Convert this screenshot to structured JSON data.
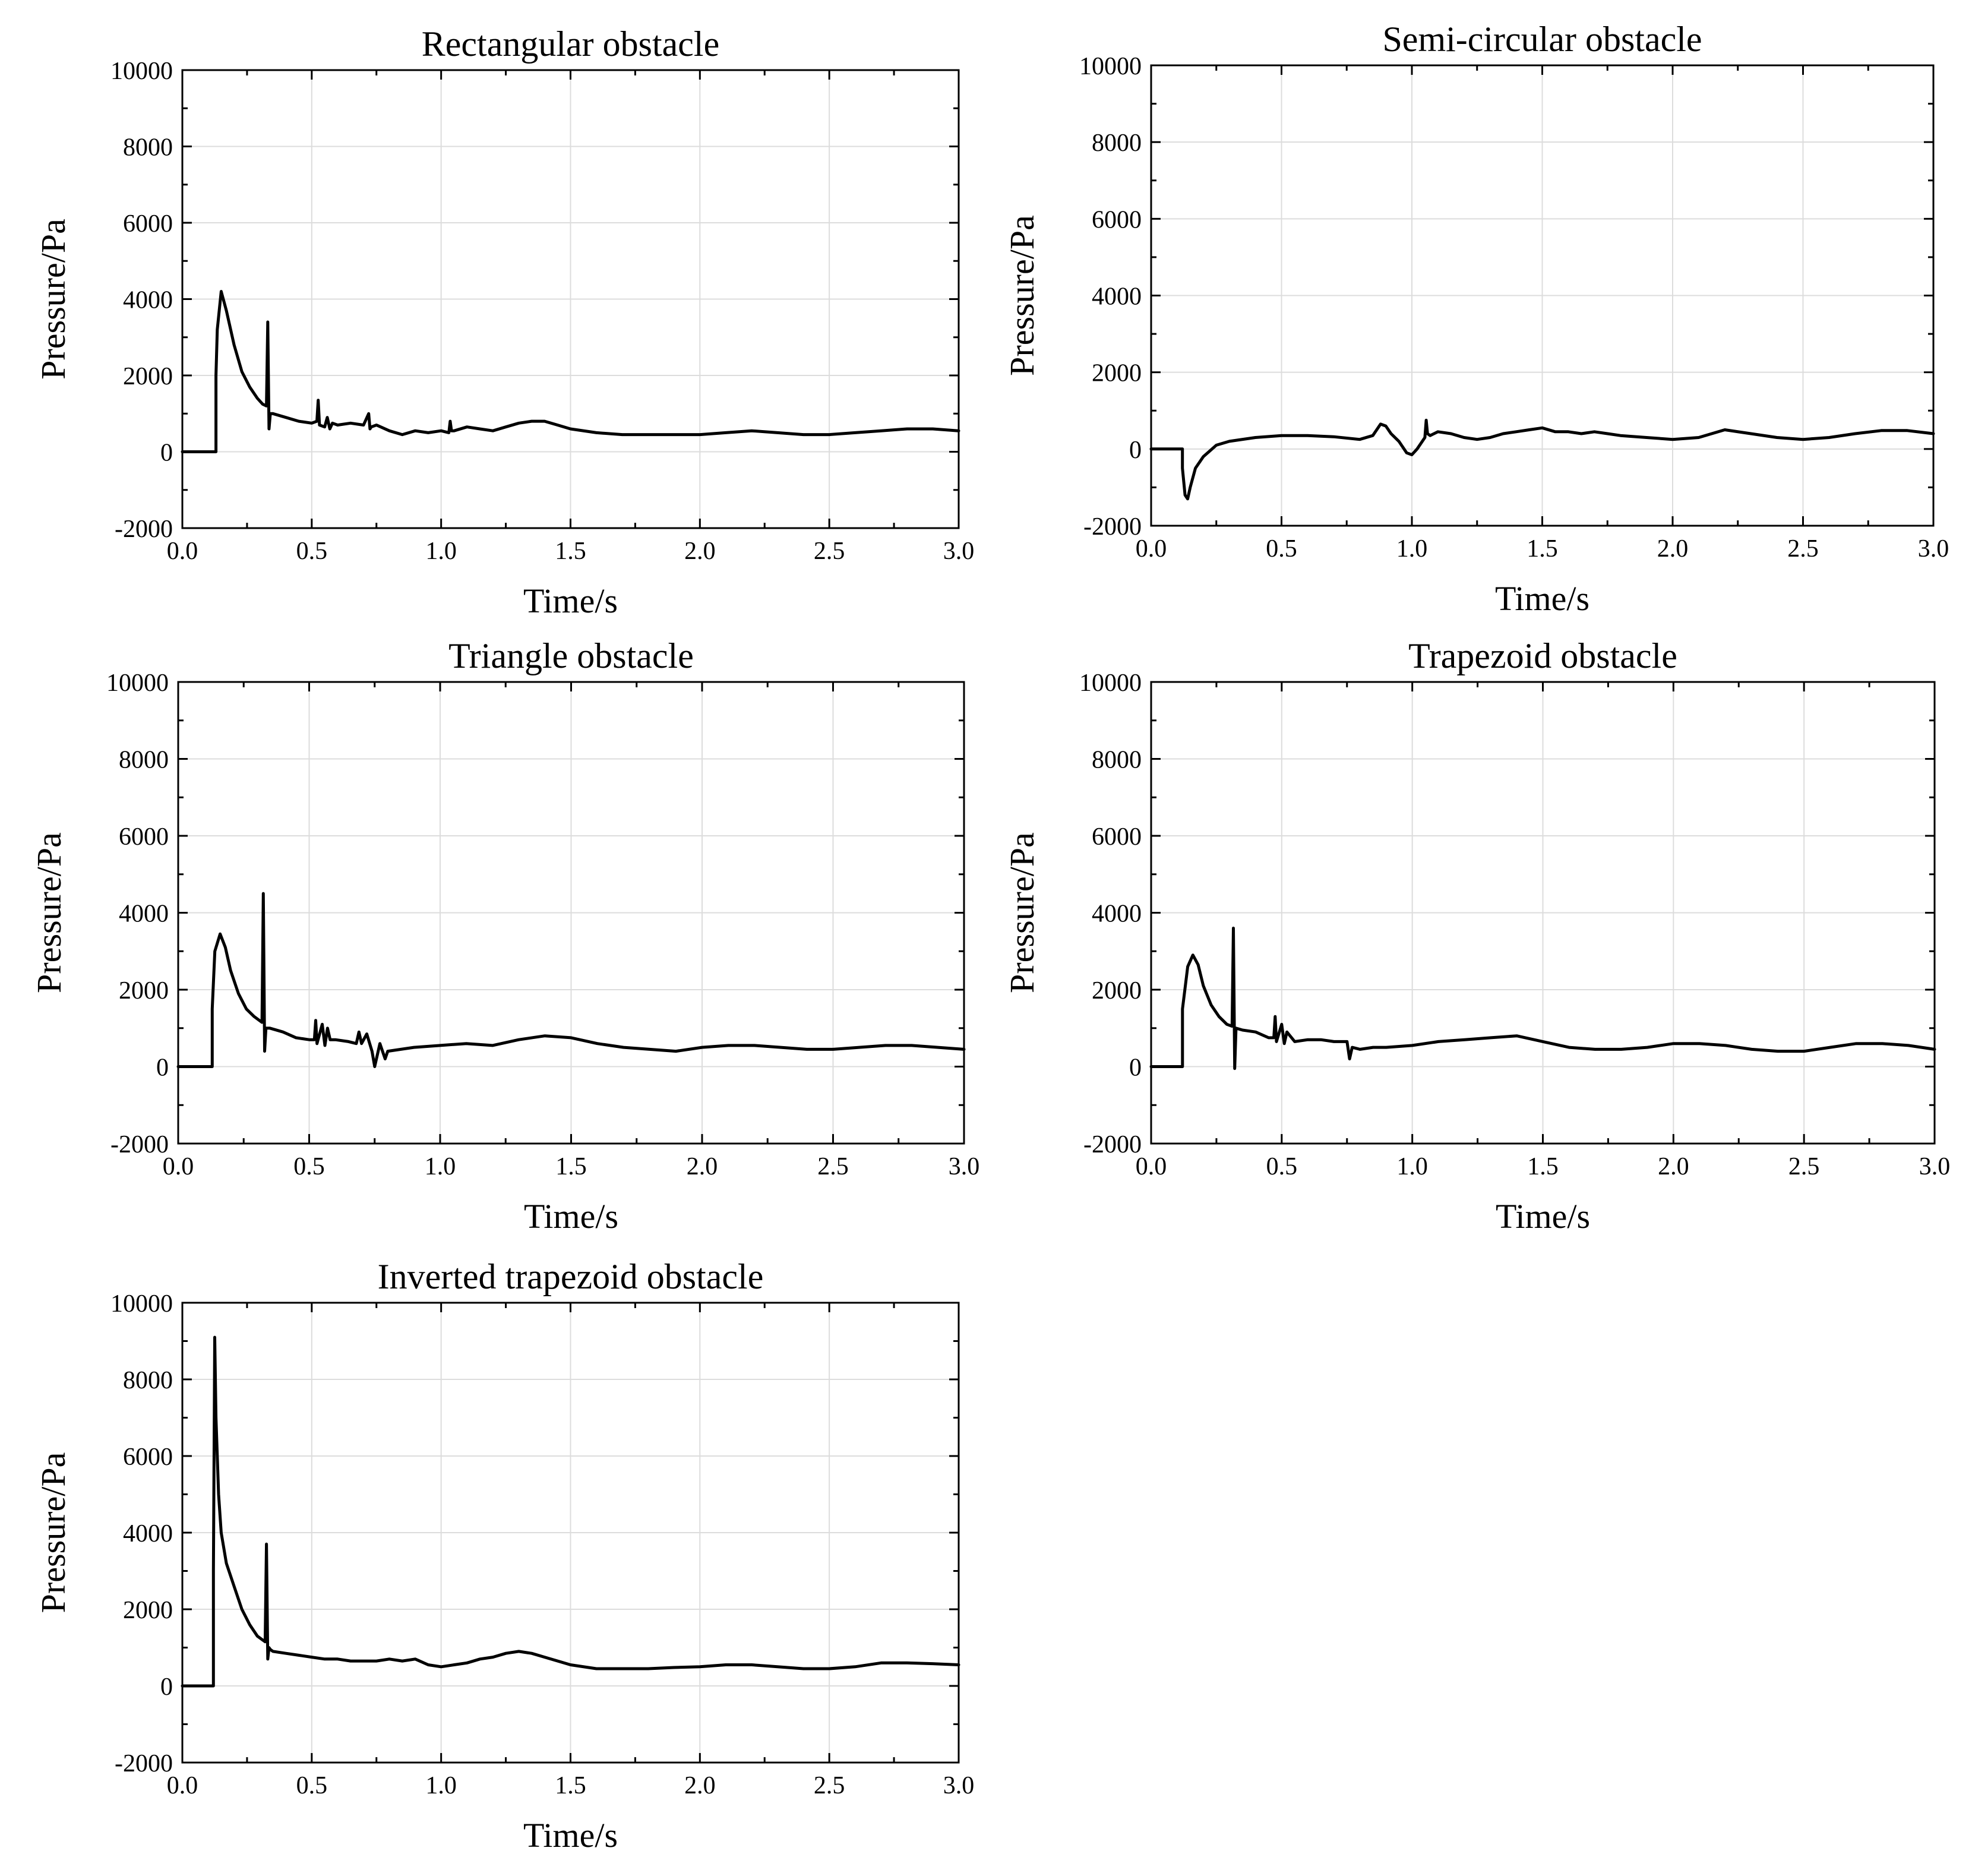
{
  "chart_data": [
    {
      "type": "line",
      "title": "Rectangular obstacle",
      "xlabel": "Time/s",
      "ylabel": "Pressure/Pa",
      "xlim": [
        0.0,
        3.0
      ],
      "ylim": [
        -2000,
        10000
      ],
      "xticks": [
        "0.0",
        "0.5",
        "1.0",
        "1.5",
        "2.0",
        "2.5",
        "3.0"
      ],
      "yticks": [
        "-2000",
        "0",
        "2000",
        "4000",
        "6000",
        "8000",
        "10000"
      ],
      "grid": true,
      "series": [
        {
          "name": "pressure",
          "x": [
            0,
            0.13,
            0.13,
            0.135,
            0.15,
            0.17,
            0.2,
            0.23,
            0.26,
            0.29,
            0.31,
            0.325,
            0.33,
            0.335,
            0.34,
            0.35,
            0.4,
            0.45,
            0.5,
            0.52,
            0.525,
            0.53,
            0.55,
            0.56,
            0.57,
            0.58,
            0.6,
            0.65,
            0.7,
            0.72,
            0.725,
            0.73,
            0.75,
            0.8,
            0.85,
            0.9,
            0.95,
            1.0,
            1.03,
            1.035,
            1.04,
            1.05,
            1.1,
            1.15,
            1.2,
            1.25,
            1.3,
            1.35,
            1.4,
            1.45,
            1.5,
            1.6,
            1.7,
            1.8,
            1.9,
            2.0,
            2.1,
            2.2,
            2.3,
            2.4,
            2.5,
            2.6,
            2.7,
            2.8,
            2.9,
            3.0
          ],
          "y": [
            0,
            0,
            2000,
            3200,
            4200,
            3700,
            2800,
            2100,
            1700,
            1400,
            1250,
            1200,
            3400,
            600,
            1000,
            1000,
            900,
            800,
            750,
            800,
            1350,
            700,
            650,
            900,
            600,
            750,
            700,
            750,
            700,
            1000,
            600,
            650,
            700,
            550,
            450,
            550,
            500,
            550,
            500,
            800,
            550,
            550,
            650,
            600,
            550,
            650,
            750,
            800,
            800,
            700,
            600,
            500,
            450,
            450,
            450,
            450,
            500,
            550,
            500,
            450,
            450,
            500,
            550,
            600,
            600,
            550
          ]
        }
      ]
    },
    {
      "type": "line",
      "title": "Semi-circular obstacle",
      "xlabel": "Time/s",
      "ylabel": "Pressure/Pa",
      "xlim": [
        0.0,
        3.0
      ],
      "ylim": [
        -2000,
        10000
      ],
      "xticks": [
        "0.0",
        "0.5",
        "1.0",
        "1.5",
        "2.0",
        "2.5",
        "3.0"
      ],
      "yticks": [
        "-2000",
        "0",
        "2000",
        "4000",
        "6000",
        "8000",
        "10000"
      ],
      "grid": true,
      "series": [
        {
          "name": "pressure",
          "x": [
            0,
            0.12,
            0.12,
            0.13,
            0.14,
            0.15,
            0.17,
            0.2,
            0.25,
            0.3,
            0.4,
            0.5,
            0.6,
            0.7,
            0.8,
            0.85,
            0.88,
            0.9,
            0.92,
            0.95,
            0.98,
            1.0,
            1.02,
            1.05,
            1.055,
            1.06,
            1.07,
            1.1,
            1.15,
            1.2,
            1.25,
            1.3,
            1.35,
            1.4,
            1.45,
            1.5,
            1.55,
            1.6,
            1.65,
            1.7,
            1.75,
            1.8,
            1.9,
            2.0,
            2.1,
            2.2,
            2.3,
            2.4,
            2.5,
            2.6,
            2.7,
            2.8,
            2.9,
            3.0
          ],
          "y": [
            0,
            0,
            -500,
            -1200,
            -1300,
            -1000,
            -500,
            -200,
            100,
            200,
            300,
            350,
            350,
            320,
            250,
            350,
            650,
            600,
            400,
            200,
            -100,
            -150,
            0,
            300,
            750,
            400,
            350,
            450,
            400,
            300,
            250,
            300,
            400,
            450,
            500,
            550,
            450,
            450,
            400,
            450,
            400,
            350,
            300,
            250,
            300,
            500,
            400,
            300,
            250,
            300,
            400,
            480,
            480,
            400
          ]
        }
      ]
    },
    {
      "type": "line",
      "title": "Triangle obstacle",
      "xlabel": "Time/s",
      "ylabel": "Pressure/Pa",
      "xlim": [
        0.0,
        3.0
      ],
      "ylim": [
        -2000,
        10000
      ],
      "xticks": [
        "0.0",
        "0.5",
        "1.0",
        "1.5",
        "2.0",
        "2.5",
        "3.0"
      ],
      "yticks": [
        "-2000",
        "0",
        "2000",
        "4000",
        "6000",
        "8000",
        "10000"
      ],
      "grid": true,
      "series": [
        {
          "name": "pressure",
          "x": [
            0,
            0.13,
            0.13,
            0.14,
            0.16,
            0.18,
            0.2,
            0.23,
            0.26,
            0.29,
            0.31,
            0.32,
            0.325,
            0.33,
            0.335,
            0.35,
            0.4,
            0.45,
            0.5,
            0.52,
            0.525,
            0.53,
            0.55,
            0.56,
            0.57,
            0.58,
            0.6,
            0.65,
            0.68,
            0.69,
            0.7,
            0.72,
            0.74,
            0.75,
            0.77,
            0.79,
            0.8,
            0.85,
            0.9,
            1.0,
            1.1,
            1.2,
            1.3,
            1.4,
            1.5,
            1.6,
            1.7,
            1.8,
            1.9,
            2.0,
            2.1,
            2.2,
            2.3,
            2.4,
            2.5,
            2.6,
            2.7,
            2.8,
            2.9,
            3.0
          ],
          "y": [
            0,
            0,
            1500,
            3000,
            3450,
            3100,
            2500,
            1900,
            1500,
            1300,
            1200,
            1150,
            4500,
            400,
            1000,
            1000,
            900,
            750,
            700,
            700,
            1200,
            600,
            1100,
            550,
            1000,
            700,
            700,
            650,
            600,
            900,
            600,
            850,
            400,
            0,
            600,
            200,
            400,
            450,
            500,
            550,
            600,
            550,
            700,
            800,
            750,
            600,
            500,
            450,
            400,
            500,
            550,
            550,
            500,
            450,
            450,
            500,
            550,
            550,
            500,
            450
          ]
        }
      ]
    },
    {
      "type": "line",
      "title": "Trapezoid obstacle",
      "xlabel": "Time/s",
      "ylabel": "Pressure/Pa",
      "xlim": [
        0.0,
        3.0
      ],
      "ylim": [
        -2000,
        10000
      ],
      "xticks": [
        "0.0",
        "0.5",
        "1.0",
        "1.5",
        "2.0",
        "2.5",
        "3.0"
      ],
      "yticks": [
        "-2000",
        "0",
        "2000",
        "4000",
        "6000",
        "8000",
        "10000"
      ],
      "grid": true,
      "series": [
        {
          "name": "pressure",
          "x": [
            0,
            0.12,
            0.12,
            0.14,
            0.16,
            0.18,
            0.2,
            0.23,
            0.26,
            0.29,
            0.31,
            0.315,
            0.32,
            0.325,
            0.35,
            0.4,
            0.45,
            0.47,
            0.475,
            0.48,
            0.5,
            0.51,
            0.52,
            0.55,
            0.6,
            0.65,
            0.7,
            0.75,
            0.76,
            0.77,
            0.8,
            0.85,
            0.9,
            1.0,
            1.1,
            1.2,
            1.3,
            1.4,
            1.5,
            1.6,
            1.7,
            1.8,
            1.9,
            2.0,
            2.1,
            2.2,
            2.3,
            2.4,
            2.5,
            2.6,
            2.7,
            2.8,
            2.9,
            3.0
          ],
          "y": [
            0,
            0,
            1500,
            2600,
            2900,
            2650,
            2100,
            1600,
            1300,
            1100,
            1050,
            3600,
            -50,
            1000,
            950,
            900,
            750,
            750,
            1300,
            650,
            1100,
            600,
            900,
            650,
            700,
            700,
            650,
            650,
            200,
            500,
            450,
            500,
            500,
            550,
            650,
            700,
            750,
            800,
            650,
            500,
            450,
            450,
            500,
            600,
            600,
            550,
            450,
            400,
            400,
            500,
            600,
            600,
            550,
            450
          ]
        }
      ]
    },
    {
      "type": "line",
      "title": "Inverted trapezoid obstacle",
      "xlabel": "Time/s",
      "ylabel": "Pressure/Pa",
      "xlim": [
        0.0,
        3.0
      ],
      "ylim": [
        -2000,
        10000
      ],
      "xticks": [
        "0.0",
        "0.5",
        "1.0",
        "1.5",
        "2.0",
        "2.5",
        "3.0"
      ],
      "yticks": [
        "-2000",
        "0",
        "2000",
        "4000",
        "6000",
        "8000",
        "10000"
      ],
      "grid": true,
      "series": [
        {
          "name": "pressure",
          "x": [
            0,
            0.12,
            0.12,
            0.125,
            0.13,
            0.135,
            0.14,
            0.15,
            0.17,
            0.2,
            0.23,
            0.26,
            0.29,
            0.31,
            0.32,
            0.325,
            0.33,
            0.335,
            0.34,
            0.35,
            0.4,
            0.45,
            0.5,
            0.55,
            0.6,
            0.65,
            0.7,
            0.75,
            0.8,
            0.85,
            0.9,
            0.95,
            1.0,
            1.05,
            1.1,
            1.15,
            1.2,
            1.25,
            1.3,
            1.35,
            1.4,
            1.5,
            1.6,
            1.7,
            1.8,
            1.9,
            2.0,
            2.1,
            2.2,
            2.3,
            2.4,
            2.5,
            2.6,
            2.7,
            2.8,
            2.9,
            3.0
          ],
          "y": [
            0,
            0,
            3000,
            9100,
            7000,
            6000,
            5000,
            4000,
            3200,
            2600,
            2000,
            1600,
            1300,
            1200,
            1150,
            3700,
            700,
            1000,
            950,
            900,
            850,
            800,
            750,
            700,
            700,
            650,
            650,
            650,
            700,
            650,
            700,
            550,
            500,
            550,
            600,
            700,
            750,
            850,
            900,
            850,
            750,
            550,
            450,
            450,
            450,
            480,
            500,
            550,
            550,
            500,
            450,
            450,
            500,
            600,
            600,
            580,
            550
          ]
        }
      ]
    }
  ]
}
